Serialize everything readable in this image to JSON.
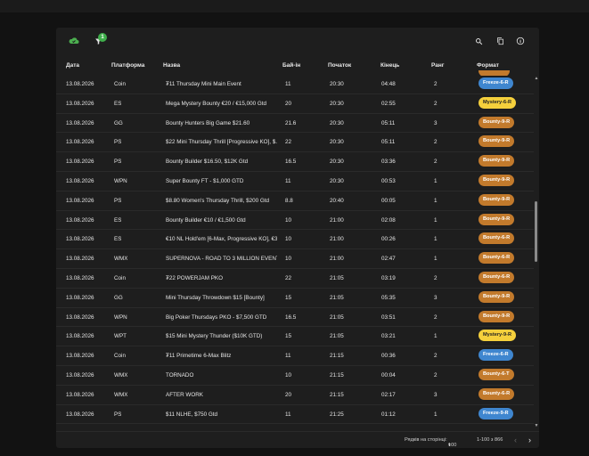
{
  "toolbar": {
    "filter_badge": "1",
    "icons": [
      "cloud-icon",
      "filter-icon",
      "search-icon",
      "copy-icon",
      "info-icon"
    ]
  },
  "columns": {
    "date": "Дата",
    "platform": "Платформа",
    "name": "Назва",
    "buyin": "Бай-ін",
    "start": "Початок",
    "end": "Кінець",
    "rank": "Ранг",
    "format": "Формат"
  },
  "rows": [
    {
      "date": "13.08.2026",
      "platform": "Coin",
      "name": "₮11 Thursday Mini Main Event",
      "buyin": "11",
      "start": "20:30",
      "end": "04:48",
      "rank": "2",
      "format": "Freeze-6-R",
      "kind": "freeze"
    },
    {
      "date": "13.08.2026",
      "platform": "ES",
      "name": "Mega Mystery Bounty €20 / €15,000 Gtd",
      "buyin": "20",
      "start": "20:30",
      "end": "02:55",
      "rank": "2",
      "format": "Mystery-6-R",
      "kind": "mystery"
    },
    {
      "date": "13.08.2026",
      "platform": "GG",
      "name": "Bounty Hunters Big Game $21.60",
      "buyin": "21.6",
      "start": "20:30",
      "end": "05:11",
      "rank": "3",
      "format": "Bounty-9-R",
      "kind": "bounty"
    },
    {
      "date": "13.08.2026",
      "platform": "PS",
      "name": "$22 Mini Thursday Thrill [Progressive KO], $...",
      "buyin": "22",
      "start": "20:30",
      "end": "05:11",
      "rank": "2",
      "format": "Bounty-9-R",
      "kind": "bounty"
    },
    {
      "date": "13.08.2026",
      "platform": "PS",
      "name": "Bounty Builder $16.50, $12K Gtd",
      "buyin": "16.5",
      "start": "20:30",
      "end": "03:36",
      "rank": "2",
      "format": "Bounty-9-R",
      "kind": "bounty"
    },
    {
      "date": "13.08.2026",
      "platform": "WPN",
      "name": "Super Bounty FT - $1,000 GTD",
      "buyin": "11",
      "start": "20:30",
      "end": "00:53",
      "rank": "1",
      "format": "Bounty-9-R",
      "kind": "bounty"
    },
    {
      "date": "13.08.2026",
      "platform": "PS",
      "name": "$8.80 Women's Thursday Thrill, $200 Gtd",
      "buyin": "8.8",
      "start": "20:40",
      "end": "00:05",
      "rank": "1",
      "format": "Bounty-9-R",
      "kind": "bounty"
    },
    {
      "date": "13.08.2026",
      "platform": "ES",
      "name": "Bounty Builder €10 / €1,500 Gtd",
      "buyin": "10",
      "start": "21:00",
      "end": "02:08",
      "rank": "1",
      "format": "Bounty-9-R",
      "kind": "bounty"
    },
    {
      "date": "13.08.2026",
      "platform": "ES",
      "name": "€10 NL Hold'em [6-Max, Progressive KO], €3...",
      "buyin": "10",
      "start": "21:00",
      "end": "00:26",
      "rank": "1",
      "format": "Bounty-6-R",
      "kind": "bounty"
    },
    {
      "date": "13.08.2026",
      "platform": "WMX",
      "name": "SUPERNOVA - ROAD TO 3 MILLION EVENT",
      "buyin": "10",
      "start": "21:00",
      "end": "02:47",
      "rank": "1",
      "format": "Bounty-6-R",
      "kind": "bounty"
    },
    {
      "date": "13.08.2026",
      "platform": "Coin",
      "name": "₮22 POWERJAM PKO",
      "buyin": "22",
      "start": "21:05",
      "end": "03:19",
      "rank": "2",
      "format": "Bounty-6-R",
      "kind": "bounty"
    },
    {
      "date": "13.08.2026",
      "platform": "GG",
      "name": "Mini Thursday Throwdown $15 [Bounty]",
      "buyin": "15",
      "start": "21:05",
      "end": "05:35",
      "rank": "3",
      "format": "Bounty-9-R",
      "kind": "bounty"
    },
    {
      "date": "13.08.2026",
      "platform": "WPN",
      "name": "Big Poker Thursdays PKO - $7,500 GTD",
      "buyin": "16.5",
      "start": "21:05",
      "end": "03:51",
      "rank": "2",
      "format": "Bounty-9-R",
      "kind": "bounty"
    },
    {
      "date": "13.08.2026",
      "platform": "WPT",
      "name": "$15 Mini Mystery Thunder ($10K GTD)",
      "buyin": "15",
      "start": "21:05",
      "end": "03:21",
      "rank": "1",
      "format": "Mystery-9-R",
      "kind": "mystery"
    },
    {
      "date": "13.08.2026",
      "platform": "Coin",
      "name": "₮11 Primetime 6-Max Blitz",
      "buyin": "11",
      "start": "21:15",
      "end": "00:36",
      "rank": "2",
      "format": "Freeze-6-R",
      "kind": "freeze"
    },
    {
      "date": "13.08.2026",
      "platform": "WMX",
      "name": "TORNADO",
      "buyin": "10",
      "start": "21:15",
      "end": "00:04",
      "rank": "2",
      "format": "Bounty-6-T",
      "kind": "bounty"
    },
    {
      "date": "13.08.2026",
      "platform": "WMX",
      "name": "AFTER WORK",
      "buyin": "20",
      "start": "21:15",
      "end": "02:17",
      "rank": "3",
      "format": "Bounty-6-R",
      "kind": "bounty"
    },
    {
      "date": "13.08.2026",
      "platform": "PS",
      "name": "$11 NLHE, $750 Gtd",
      "buyin": "11",
      "start": "21:25",
      "end": "01:12",
      "rank": "1",
      "format": "Freeze-9-R",
      "kind": "freeze"
    }
  ],
  "footer": {
    "rows_per_page_label": "Рядків на сторінці:",
    "rows_per_page_value": "100",
    "range": "1-100 з 866"
  },
  "colors": {
    "bounty": "#c27a2c",
    "freeze": "#3f86cf",
    "mystery": "#f5d03c",
    "accent_green": "#3fae4b"
  }
}
